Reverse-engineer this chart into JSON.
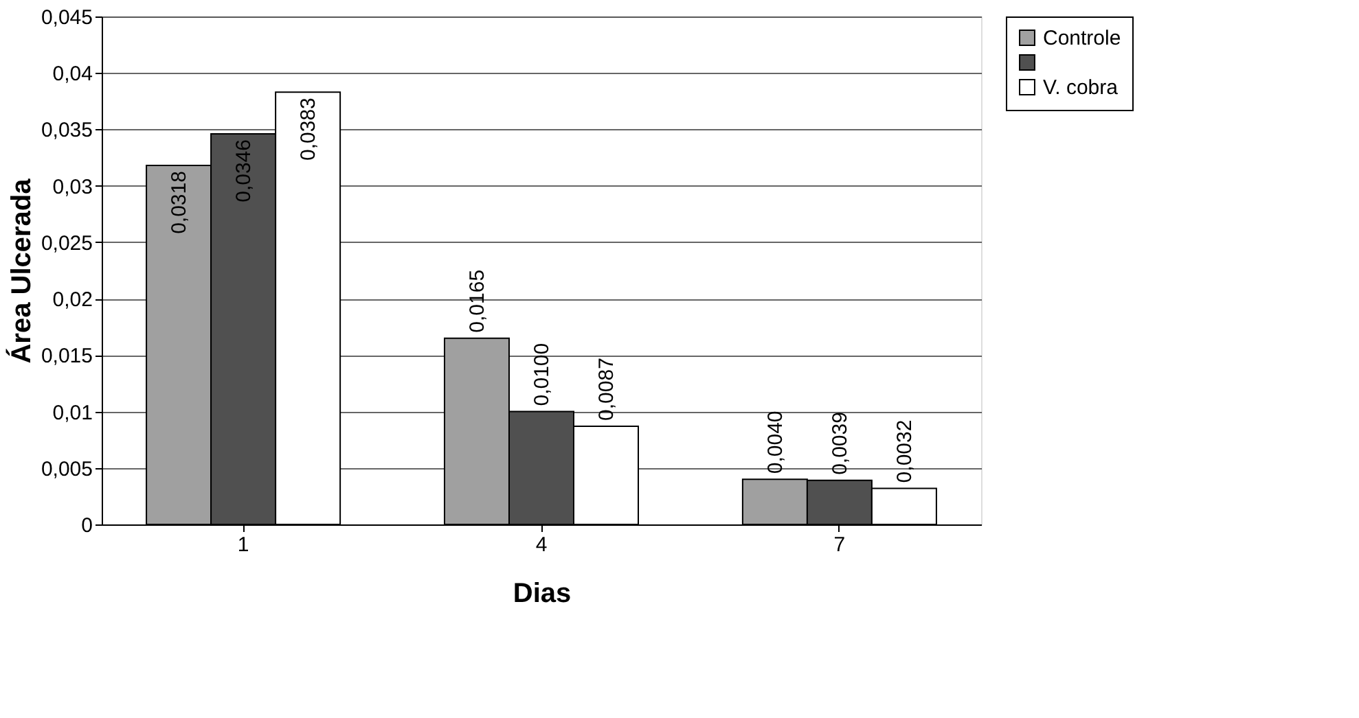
{
  "chart_data": {
    "type": "bar",
    "xlabel": "Dias",
    "ylabel": "Área Ulcerada",
    "categories": [
      "1",
      "4",
      "7"
    ],
    "series": [
      {
        "name": "Controle",
        "color": "#a0a0a0",
        "values": [
          0.0318,
          0.0165,
          0.004
        ],
        "value_labels": [
          "0,0318",
          "0,0165",
          "0,0040"
        ]
      },
      {
        "color": "#505050",
        "values": [
          0.0346,
          0.01,
          0.0039
        ],
        "value_labels": [
          "0,0346",
          "0,0100",
          "0,0039"
        ]
      },
      {
        "name": "V. cobra",
        "color": "#ffffff",
        "values": [
          0.0383,
          0.0087,
          0.0032
        ],
        "value_labels": [
          "0,0383",
          "0,0087",
          "0,0032"
        ]
      }
    ],
    "ylim": [
      0,
      0.045
    ],
    "yticks": [
      0,
      {
        "value": 0.005,
        "label": "0,005"
      },
      {
        "value": 0.01,
        "label": "0,01"
      },
      {
        "value": 0.015,
        "label": "0,015"
      },
      {
        "value": 0.02,
        "label": "0,02"
      },
      {
        "value": 0.025,
        "label": "0,025"
      },
      {
        "value": 0.03,
        "label": "0,03"
      },
      {
        "value": 0.035,
        "label": "0,035"
      },
      {
        "value": 0.04,
        "label": "0,04"
      },
      {
        "value": 0.045,
        "label": "0,045"
      }
    ],
    "grid": "y",
    "legend": "right"
  }
}
